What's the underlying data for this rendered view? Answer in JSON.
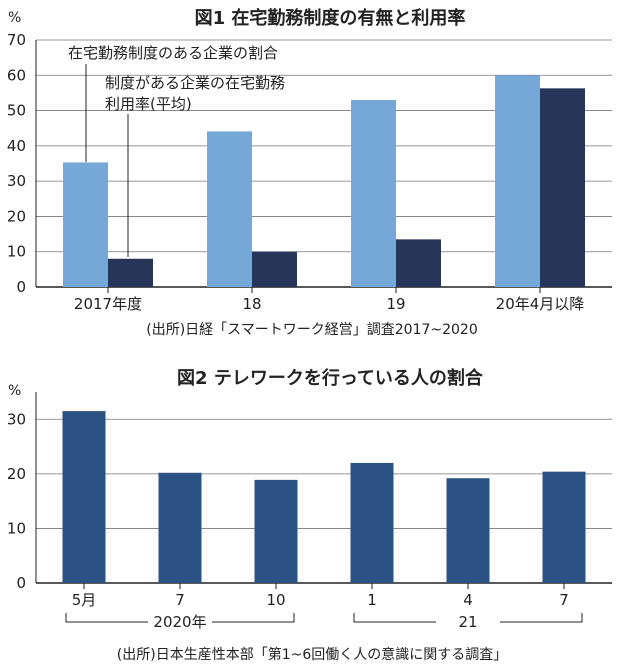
{
  "chart_data": [
    {
      "type": "bar",
      "title": "図1 在宅勤務制度の有無と利用率",
      "ylabel": "%",
      "ylim": [
        0,
        70
      ],
      "yticks": [
        0,
        10,
        20,
        30,
        40,
        50,
        60,
        70
      ],
      "categories": [
        "2017年度",
        "18",
        "19",
        "20年4月以降"
      ],
      "series": [
        {
          "name": "在宅勤務制度のある企業の割合",
          "color": "#75a7d7",
          "values": [
            35.3,
            44.1,
            53.0,
            60.0
          ]
        },
        {
          "name": "制度がある企業の在宅勤務利用率(平均)",
          "color": "#273559",
          "values": [
            8.0,
            10.0,
            13.5,
            56.3
          ]
        }
      ],
      "annotations": [
        "在宅勤務制度のある企業の割合",
        "制度がある企業の在宅勤務",
        "利用率(平均)"
      ],
      "source": "(出所)日経「スマートワーク経営」調査2017~2020",
      "grid": true
    },
    {
      "type": "bar",
      "title": "図2 テレワークを行っている人の割合",
      "ylabel": "%",
      "ylim": [
        0,
        35
      ],
      "yticks": [
        0,
        10,
        20,
        30
      ],
      "categories": [
        "5月",
        "7",
        "10",
        "1",
        "4",
        "7"
      ],
      "groups": [
        {
          "label": "2020年",
          "from": 0,
          "to": 2
        },
        {
          "label": "21",
          "from": 3,
          "to": 5
        }
      ],
      "series": [
        {
          "color": "#2b5283",
          "values": [
            31.5,
            20.2,
            18.9,
            22.0,
            19.2,
            20.4
          ]
        }
      ],
      "source": "(出所)日本生産性本部「第1~6回働く人の意識に関する調査」",
      "grid": true
    }
  ]
}
